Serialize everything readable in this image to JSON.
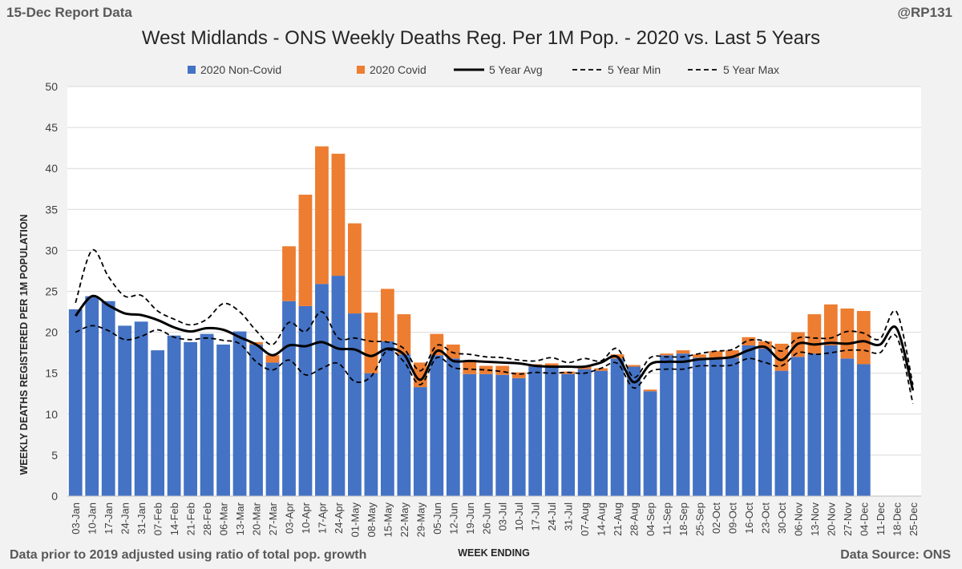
{
  "header": {
    "top_left": "15-Dec Report Data",
    "top_right": "@RP131",
    "bottom_left": "Data prior to 2019 adjusted using ratio of total pop. growth",
    "bottom_right": "Data Source: ONS"
  },
  "chart_data": {
    "type": "bar",
    "stacked": true,
    "title": "West Midlands - ONS Weekly Deaths Reg. Per 1M Pop. - 2020 vs. Last 5 Years",
    "xlabel": "WEEK ENDING",
    "ylabel": "WEEKLY DEATHS REGISTERED PER 1M POPULATION",
    "ylim": [
      0,
      50
    ],
    "yticks": [
      0,
      5,
      10,
      15,
      20,
      25,
      30,
      35,
      40,
      45,
      50
    ],
    "grid": true,
    "legend_position": "top",
    "categories": [
      "03-Jan",
      "10-Jan",
      "17-Jan",
      "24-Jan",
      "31-Jan",
      "07-Feb",
      "14-Feb",
      "21-Feb",
      "28-Feb",
      "06-Mar",
      "13-Mar",
      "20-Mar",
      "27-Mar",
      "03-Apr",
      "10-Apr",
      "17-Apr",
      "24-Apr",
      "01-May",
      "08-May",
      "15-May",
      "22-May",
      "29-May",
      "05-Jun",
      "12-Jun",
      "19-Jun",
      "26-Jun",
      "03-Jul",
      "10-Jul",
      "17-Jul",
      "24-Jul",
      "31-Jul",
      "07-Aug",
      "14-Aug",
      "21-Aug",
      "28-Aug",
      "04-Sep",
      "11-Sep",
      "18-Sep",
      "25-Sep",
      "02-Oct",
      "09-Oct",
      "16-Oct",
      "23-Oct",
      "30-Oct",
      "06-Nov",
      "13-Nov",
      "20-Nov",
      "27-Nov",
      "04-Dec",
      "11-Dec",
      "18-Dec",
      "25-Dec"
    ],
    "series": [
      {
        "name": "2020 Non-Covid",
        "kind": "bar",
        "color": "#4472c4",
        "values": [
          22.8,
          24.4,
          23.8,
          20.8,
          21.3,
          17.8,
          19.6,
          18.8,
          19.8,
          18.5,
          20.1,
          18.5,
          16.3,
          23.8,
          23.2,
          25.9,
          26.9,
          22.3,
          15.0,
          18.9,
          17.3,
          13.3,
          17.2,
          16.8,
          14.9,
          14.9,
          14.8,
          14.4,
          15.8,
          15.8,
          14.9,
          15.5,
          15.3,
          16.8,
          15.8,
          12.8,
          17.2,
          17.4,
          16.9,
          16.9,
          16.9,
          18.4,
          18.0,
          15.3,
          17.0,
          17.4,
          18.4,
          16.8,
          16.1,
          null,
          null,
          null
        ]
      },
      {
        "name": "2020 Covid",
        "kind": "bar",
        "color": "#ed7d31",
        "values": [
          0,
          0,
          0,
          0,
          0,
          0,
          0,
          0,
          0,
          0,
          0,
          0.3,
          0.9,
          6.7,
          13.6,
          16.8,
          14.9,
          11.0,
          7.4,
          6.4,
          4.9,
          3.0,
          2.6,
          1.7,
          1.5,
          1.0,
          1.1,
          0.7,
          0.3,
          0.4,
          0.3,
          0.3,
          0.3,
          0.5,
          0.2,
          0.2,
          0.2,
          0.4,
          0.4,
          0.8,
          0.9,
          1.0,
          0.9,
          3.3,
          3.0,
          4.8,
          5.0,
          6.1,
          6.5,
          null,
          null,
          null
        ]
      },
      {
        "name": "5 Year Avg",
        "kind": "line",
        "style": "solid",
        "color": "#000000",
        "values": [
          22.0,
          24.4,
          23.3,
          22.3,
          22.1,
          21.5,
          20.6,
          20.1,
          20.5,
          20.3,
          19.4,
          18.5,
          17.2,
          18.4,
          18.3,
          18.8,
          18.0,
          17.9,
          17.1,
          18.0,
          17.3,
          14.2,
          17.7,
          16.5,
          16.5,
          16.4,
          16.3,
          16.2,
          15.9,
          15.8,
          15.8,
          15.8,
          16.3,
          17.0,
          13.9,
          16.1,
          16.4,
          16.4,
          16.7,
          16.8,
          17.0,
          17.8,
          18.2,
          16.6,
          18.6,
          18.5,
          18.7,
          18.6,
          18.9,
          18.5,
          20.5,
          12.9
        ]
      },
      {
        "name": "5 Year Min",
        "kind": "line",
        "style": "dashed",
        "color": "#000000",
        "values": [
          20.0,
          20.8,
          20.2,
          19.1,
          19.5,
          20.3,
          19.4,
          19.1,
          19.3,
          19.0,
          18.6,
          16.4,
          15.4,
          16.6,
          14.8,
          15.6,
          16.2,
          14.0,
          14.6,
          17.8,
          16.4,
          13.6,
          16.9,
          15.7,
          15.5,
          15.4,
          15.2,
          14.9,
          15.1,
          15.0,
          15.1,
          15.0,
          15.6,
          16.2,
          13.2,
          15.2,
          15.5,
          15.5,
          15.9,
          15.9,
          16.0,
          16.8,
          16.3,
          15.9,
          17.5,
          17.3,
          17.5,
          17.8,
          17.8,
          17.5,
          19.5,
          11.3
        ]
      },
      {
        "name": "5 Year Max",
        "kind": "line",
        "style": "dashed",
        "color": "#000000",
        "values": [
          23.6,
          30.0,
          26.8,
          24.4,
          24.5,
          22.6,
          21.6,
          20.9,
          21.6,
          23.5,
          22.5,
          20.2,
          18.5,
          21.2,
          20.1,
          22.5,
          19.3,
          19.3,
          18.9,
          18.8,
          18.0,
          15.3,
          18.4,
          17.5,
          17.3,
          17.0,
          16.9,
          16.6,
          16.5,
          16.9,
          16.3,
          16.8,
          16.5,
          18.0,
          14.5,
          16.9,
          17.0,
          17.0,
          17.4,
          17.7,
          17.9,
          19.0,
          18.9,
          17.7,
          19.3,
          19.3,
          19.3,
          20.1,
          19.9,
          19.2,
          22.5,
          13.6
        ]
      }
    ]
  }
}
